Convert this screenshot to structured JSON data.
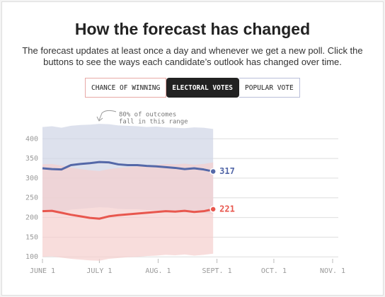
{
  "controls": {
    "buttons": [
      "CHANCE OF WINNING",
      "ELECTORAL VOTES",
      "POPULAR VOTE"
    ],
    "active": 1
  },
  "chart_data": {
    "type": "line",
    "title": "How the forecast has changed",
    "subtitle": "The forecast updates at least once a day and whenever we get a new poll. Click the buttons to see the ways each candidate’s outlook has changed over time.",
    "annotation": [
      "80% of outcomes",
      "fall in this range"
    ],
    "x": [
      0,
      5,
      10,
      15,
      20,
      25,
      30,
      35,
      40,
      45,
      50,
      55,
      60,
      65,
      70,
      75,
      80,
      85,
      90
    ],
    "xlim": [
      0,
      153
    ],
    "xticks": [
      {
        "value": 0,
        "label": "JUNE 1"
      },
      {
        "value": 30,
        "label": "JULY 1"
      },
      {
        "value": 61,
        "label": "AUG. 1"
      },
      {
        "value": 92,
        "label": "SEPT. 1"
      },
      {
        "value": 122,
        "label": "OCT. 1"
      },
      {
        "value": 153,
        "label": "NOV. 1"
      }
    ],
    "ylim": [
      95,
      440
    ],
    "yticks": [
      100,
      150,
      200,
      250,
      300,
      350,
      400
    ],
    "grid": true,
    "series": [
      {
        "color": "#5468a8",
        "band_color": "#cfd4e6",
        "values": [
          325,
          323,
          322,
          333,
          336,
          338,
          341,
          340,
          335,
          333,
          333,
          331,
          330,
          328,
          326,
          323,
          325,
          322,
          317
        ],
        "high": [
          430,
          432,
          428,
          433,
          435,
          436,
          438,
          437,
          434,
          433,
          432,
          430,
          431,
          429,
          428,
          427,
          429,
          428,
          425
        ],
        "low": [
          215,
          214,
          213,
          220,
          222,
          224,
          226,
          225,
          222,
          221,
          221,
          219,
          218,
          217,
          215,
          213,
          214,
          212,
          208
        ]
      },
      {
        "color": "#e8574e",
        "band_color": "#f5cfcd",
        "values": [
          216,
          217,
          212,
          207,
          203,
          199,
          197,
          203,
          206,
          208,
          210,
          212,
          214,
          216,
          215,
          217,
          214,
          216,
          221
        ],
        "high": [
          335,
          336,
          332,
          327,
          323,
          320,
          318,
          323,
          326,
          328,
          330,
          332,
          334,
          336,
          335,
          337,
          334,
          336,
          340
        ],
        "low": [
          100,
          101,
          98,
          95,
          93,
          91,
          90,
          95,
          97,
          99,
          100,
          102,
          103,
          105,
          104,
          106,
          103,
          105,
          108
        ]
      }
    ]
  }
}
